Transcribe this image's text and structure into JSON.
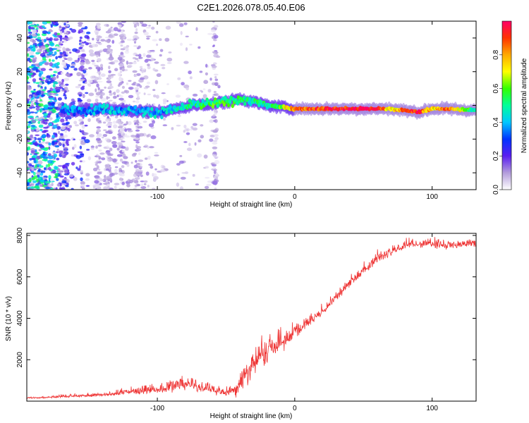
{
  "chart_data": [
    {
      "type": "heatmap",
      "title": "C2E1.2026.078.05.40.E06",
      "xlabel": "Height of straight line (km)",
      "ylabel": "Frequency (Hz)",
      "xlim": [
        -195,
        132
      ],
      "ylim": [
        -50,
        50
      ],
      "xticks": [
        -100,
        0,
        100
      ],
      "yticks": [
        -40,
        -20,
        0,
        20,
        40
      ],
      "colorbar": {
        "label": "Normalized spectral amplitude",
        "range": [
          0,
          1
        ],
        "ticks": [
          "0.0",
          "0.2",
          "0.4",
          "0.6",
          "0.8"
        ],
        "colors": [
          "#ffffff",
          "#b39ddb",
          "#5a1ef0",
          "#0033ff",
          "#00c8ff",
          "#00ff9a",
          "#33ff00",
          "#ffff00",
          "#ffaa00",
          "#ff3300",
          "#ff0066"
        ]
      },
      "ridge": {
        "x": [
          -165,
          -140,
          -120,
          -100,
          -85,
          -75,
          -60,
          -50,
          -40,
          -30,
          -20,
          -10,
          0,
          20,
          40,
          60,
          70,
          80,
          90,
          100,
          110,
          132
        ],
        "freq": [
          -3,
          -2,
          -3,
          -4,
          -2,
          0,
          1,
          2,
          4,
          2,
          0,
          -1,
          -2,
          -2,
          -2,
          -2,
          -2,
          -3,
          -4,
          -2,
          -2,
          -3
        ],
        "peak_amplitude": [
          0.35,
          0.38,
          0.4,
          0.38,
          0.45,
          0.5,
          0.55,
          0.55,
          0.5,
          0.48,
          0.5,
          0.6,
          0.85,
          0.9,
          0.95,
          0.95,
          0.7,
          0.85,
          0.95,
          0.7,
          0.9,
          0.45
        ]
      }
    },
    {
      "type": "line",
      "xlabel": "Height of straight line (km)",
      "ylabel": "SNR (10 * v/v)",
      "xlim": [
        -195,
        132
      ],
      "ylim": [
        0,
        8100
      ],
      "xticks": [
        -100,
        0,
        100
      ],
      "yticks": [
        2000,
        4000,
        6000,
        8000
      ],
      "series": [
        {
          "name": "SNR",
          "color": "#ee3333",
          "x": [
            -195,
            -180,
            -160,
            -140,
            -120,
            -100,
            -90,
            -80,
            -70,
            -60,
            -50,
            -40,
            -35,
            -30,
            -25,
            -20,
            -15,
            -10,
            -5,
            0,
            10,
            20,
            30,
            40,
            50,
            60,
            70,
            80,
            90,
            100,
            110,
            120,
            132
          ],
          "y": [
            150,
            180,
            250,
            300,
            450,
            550,
            700,
            800,
            700,
            550,
            400,
            600,
            1200,
            1800,
            2200,
            2400,
            2600,
            2800,
            3000,
            3300,
            3800,
            4300,
            5000,
            5700,
            6300,
            6800,
            7200,
            7500,
            7600,
            7600,
            7500,
            7550,
            7600
          ],
          "noise": [
            40,
            60,
            100,
            120,
            200,
            250,
            350,
            400,
            350,
            300,
            200,
            600,
            800,
            900,
            900,
            900,
            800,
            700,
            600,
            400,
            300,
            300,
            300,
            300,
            300,
            300,
            250,
            250,
            250,
            250,
            250,
            250,
            250
          ]
        }
      ]
    }
  ]
}
